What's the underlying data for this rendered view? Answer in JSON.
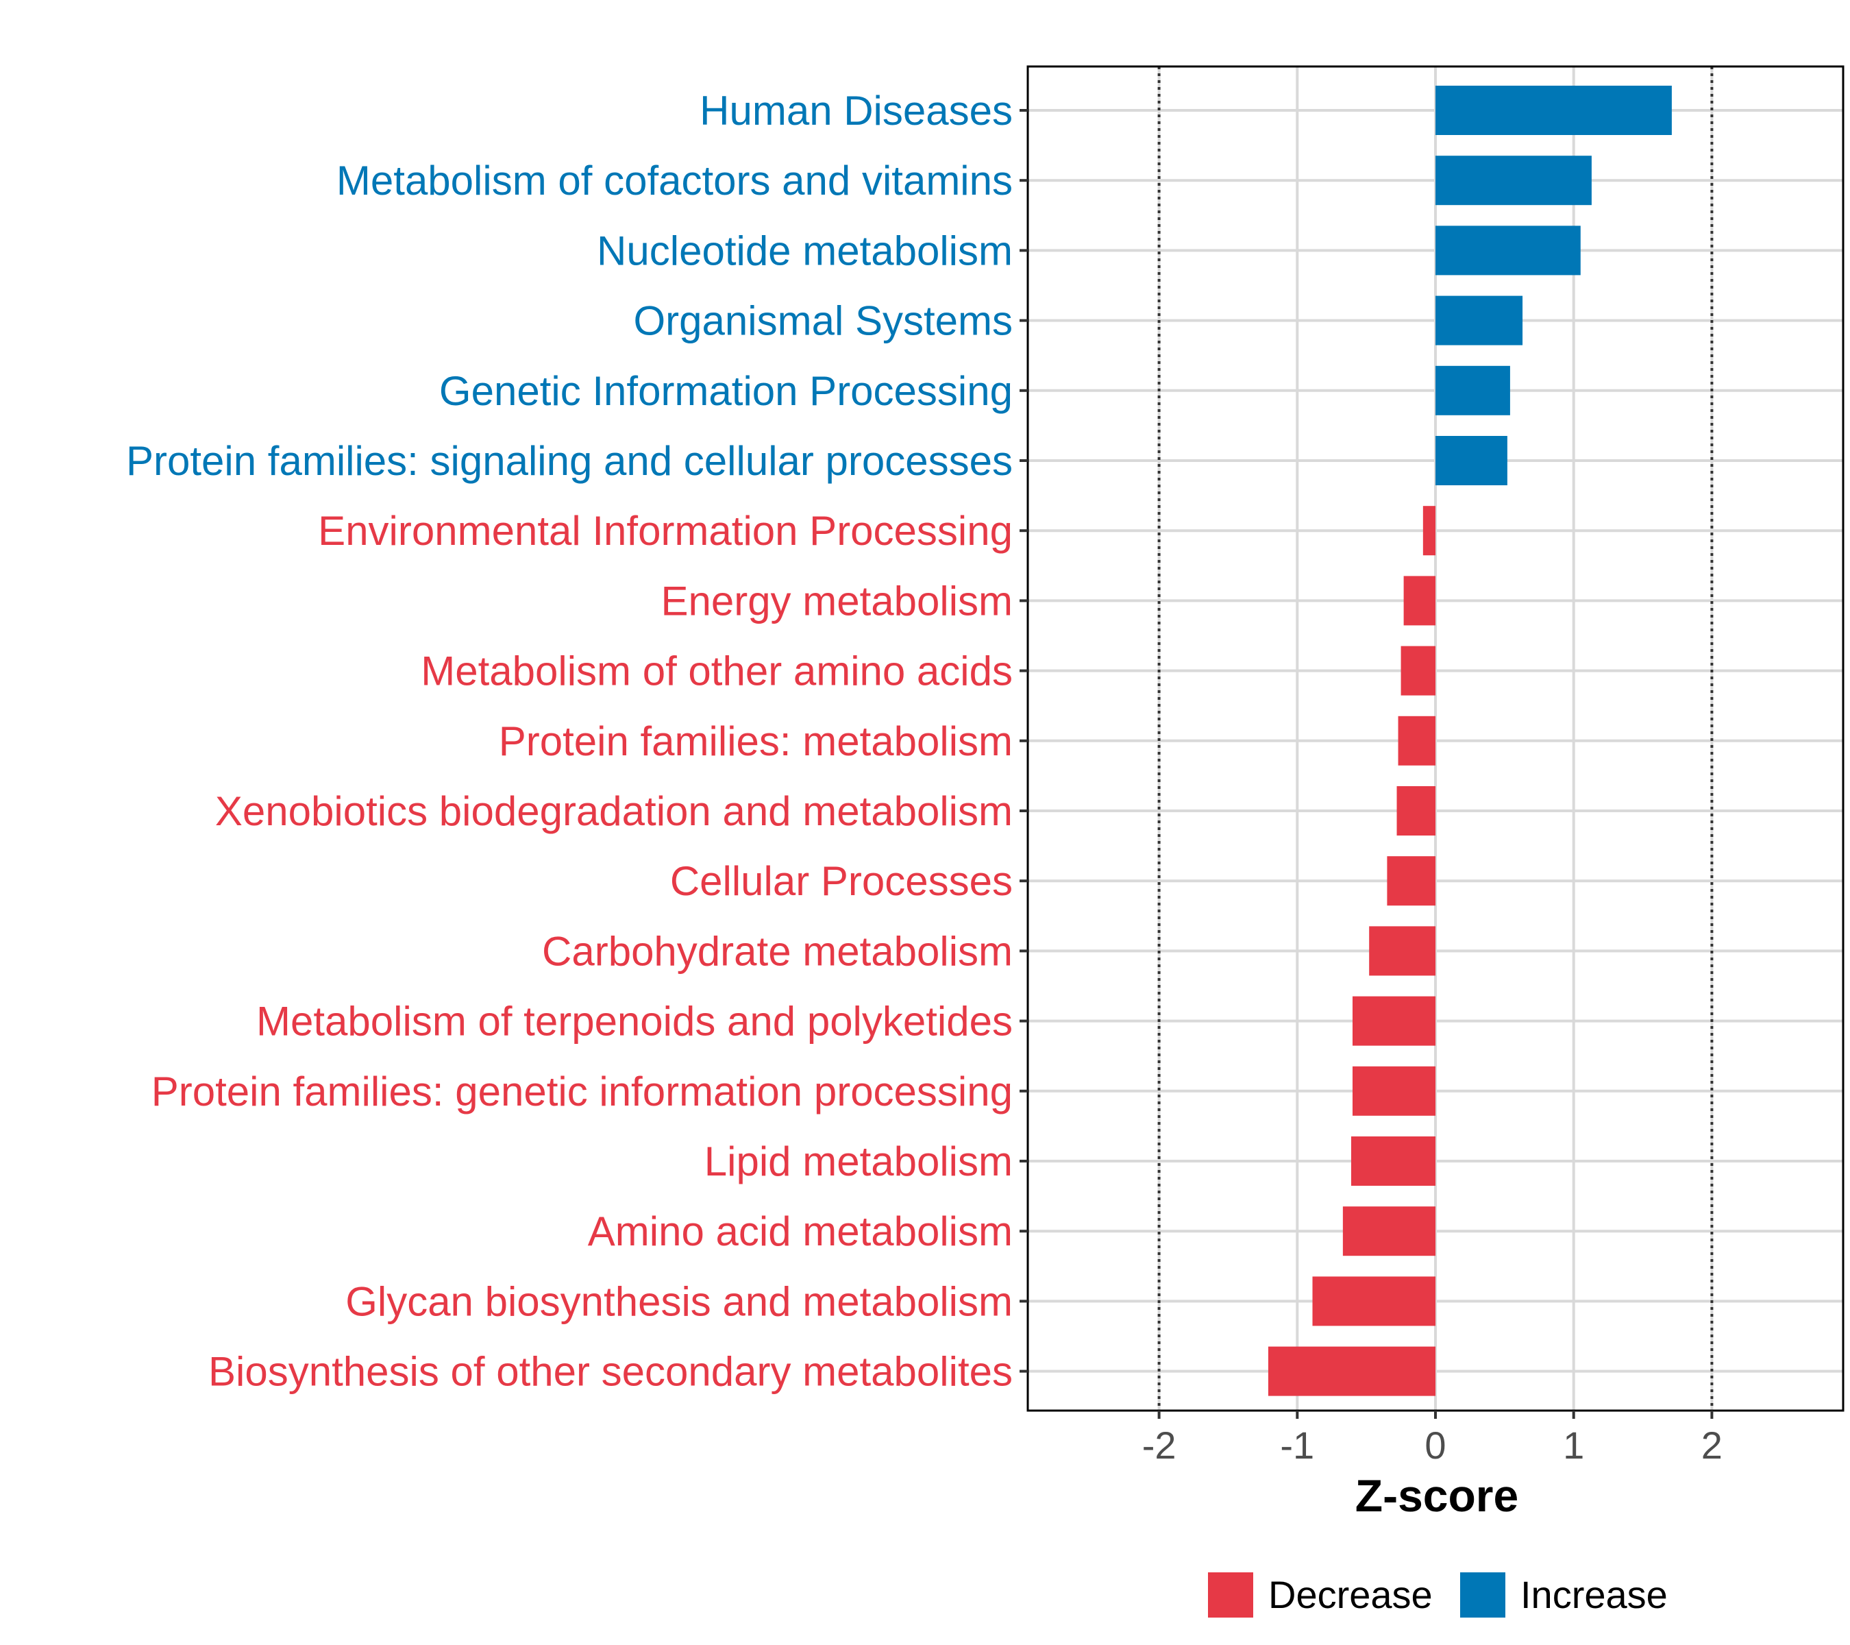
{
  "chart_data": {
    "type": "bar",
    "orientation": "horizontal",
    "xlabel": "Z-score",
    "xlim": [
      -2.95,
      2.95
    ],
    "xticks": [
      -2,
      -1,
      0,
      1,
      2
    ],
    "reference_lines": [
      -2,
      2
    ],
    "grid": true,
    "legend_position": "bottom",
    "colors": {
      "Decrease": "#E63946",
      "Increase": "#0077B6",
      "axis": "#000000",
      "grid": "#d9d9d9",
      "tick_text": "#4d4d4d"
    },
    "legend": [
      {
        "label": "Decrease",
        "color": "#E63946"
      },
      {
        "label": "Increase",
        "color": "#0077B6"
      }
    ],
    "categories": [
      "Human Diseases",
      "Metabolism of cofactors and vitamins",
      "Nucleotide metabolism",
      "Organismal Systems",
      "Genetic Information Processing",
      "Protein families: signaling and cellular processes",
      "Environmental Information Processing",
      "Energy metabolism",
      "Metabolism of other amino acids",
      "Protein families: metabolism",
      "Xenobiotics biodegradation and metabolism",
      "Cellular Processes",
      "Carbohydrate metabolism",
      "Metabolism of terpenoids and polyketides",
      "Protein families: genetic information processing",
      "Lipid metabolism",
      "Amino acid metabolism",
      "Glycan biosynthesis and metabolism",
      "Biosynthesis of other secondary metabolites"
    ],
    "values": [
      1.71,
      1.13,
      1.05,
      0.63,
      0.54,
      0.52,
      -0.09,
      -0.23,
      -0.25,
      -0.27,
      -0.28,
      -0.35,
      -0.48,
      -0.6,
      -0.6,
      -0.61,
      -0.67,
      -0.89,
      -1.21
    ],
    "groups": [
      "Increase",
      "Increase",
      "Increase",
      "Increase",
      "Increase",
      "Increase",
      "Decrease",
      "Decrease",
      "Decrease",
      "Decrease",
      "Decrease",
      "Decrease",
      "Decrease",
      "Decrease",
      "Decrease",
      "Decrease",
      "Decrease",
      "Decrease",
      "Decrease"
    ]
  }
}
